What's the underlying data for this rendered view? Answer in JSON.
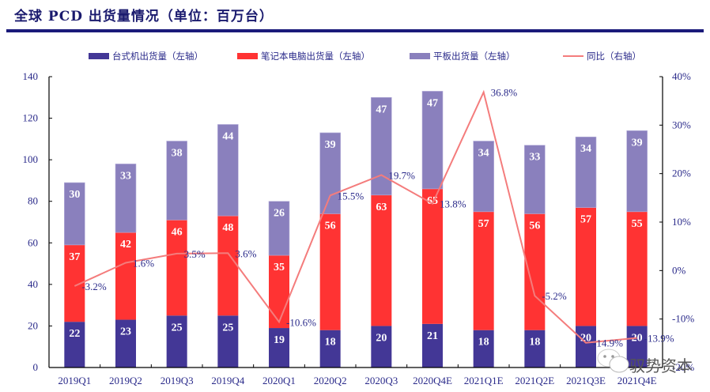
{
  "title": "全球 PCD 出货量情况（单位：百万台）",
  "watermark": "驭势资本",
  "chart_data": {
    "type": "bar",
    "stacked": true,
    "title": "全球 PCD 出货量情况（单位：百万台）",
    "categories": [
      "2019Q1",
      "2019Q2",
      "2019Q3",
      "2019Q4",
      "2020Q1",
      "2020Q2",
      "2020Q3",
      "2020Q4E",
      "2021Q1E",
      "2021Q2E",
      "2021Q3E",
      "2021Q4E"
    ],
    "series": [
      {
        "name": "台式机出货量（左轴）",
        "type": "bar",
        "axis": "left",
        "color": "#433796",
        "values": [
          22,
          23,
          25,
          25,
          19,
          18,
          20,
          21,
          18,
          18,
          20,
          20
        ]
      },
      {
        "name": "笔记本电脑出货量（左轴）",
        "type": "bar",
        "axis": "left",
        "color": "#ff3333",
        "values": [
          37,
          42,
          46,
          48,
          35,
          56,
          63,
          65,
          57,
          56,
          57,
          55
        ]
      },
      {
        "name": "平板出货量（左轴）",
        "type": "bar",
        "axis": "left",
        "color": "#8a80bd",
        "values": [
          30,
          33,
          38,
          44,
          26,
          39,
          47,
          47,
          34,
          33,
          34,
          39
        ]
      },
      {
        "name": "同比（右轴）",
        "type": "line",
        "axis": "right",
        "color": "#f47c7c",
        "values": [
          -3.2,
          1.6,
          3.5,
          3.6,
          -10.6,
          15.5,
          19.7,
          13.8,
          36.8,
          -5.2,
          -14.9,
          -13.9
        ],
        "labels": [
          "-3.2%",
          "1.6%",
          "3.5%",
          "3.6%",
          "-10.6%",
          "15.5%",
          "19.7%",
          "13.8%",
          "36.8%",
          "-5.2%",
          "-14.9%",
          "-13.9%"
        ]
      }
    ],
    "left_axis": {
      "min": 0,
      "max": 140,
      "ticks": [
        "0",
        "20",
        "40",
        "60",
        "80",
        "100",
        "120",
        "140"
      ]
    },
    "right_axis": {
      "min": -20,
      "max": 40,
      "ticks": [
        "-20%",
        "-10%",
        "0%",
        "10%",
        "20%",
        "30%",
        "40%"
      ]
    },
    "xlabel": "",
    "ylabel": "",
    "legend_position": "top",
    "grid": false
  }
}
